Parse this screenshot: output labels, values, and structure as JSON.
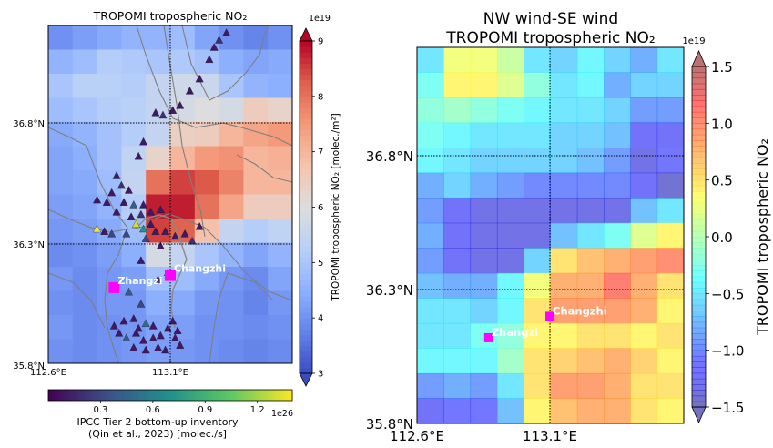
{
  "chart_data": [
    {
      "type": "heatmap",
      "title": "TROPOMI tropospheric NO₂",
      "xticks": [
        {
          "value": 112.6,
          "label": "112.6°E"
        },
        {
          "value": 113.1,
          "label": "113.1°E"
        }
      ],
      "yticks": [
        {
          "value": 35.8,
          "label": "35.8°N"
        },
        {
          "value": 36.3,
          "label": "36.3°N"
        },
        {
          "value": 36.8,
          "label": "36.8°N"
        }
      ],
      "xlim": [
        112.6,
        113.1
      ],
      "ylim": [
        35.8,
        36.8
      ],
      "grid_values": [
        [
          4.0,
          4.2,
          4.4,
          4.6,
          4.6,
          4.8,
          4.3,
          4.0,
          3.8,
          4.0
        ],
        [
          4.6,
          4.8,
          5.2,
          5.1,
          5.0,
          5.1,
          4.9,
          4.5,
          4.3,
          4.4
        ],
        [
          5.0,
          5.3,
          5.3,
          5.2,
          5.5,
          5.7,
          5.6,
          5.0,
          4.6,
          4.5
        ],
        [
          4.8,
          5.0,
          5.2,
          5.3,
          5.5,
          5.8,
          6.0,
          5.8,
          6.5,
          6.3
        ],
        [
          4.4,
          4.6,
          4.9,
          5.2,
          5.5,
          6.4,
          6.5,
          7.0,
          7.3,
          7.5
        ],
        [
          4.3,
          4.5,
          4.9,
          5.4,
          6.3,
          7.0,
          7.5,
          7.6,
          7.0,
          7.1
        ],
        [
          4.3,
          4.4,
          4.8,
          5.5,
          8.0,
          8.5,
          8.3,
          7.8,
          7.0,
          7.0
        ],
        [
          4.2,
          4.3,
          4.6,
          5.2,
          8.8,
          8.8,
          8.0,
          7.3,
          6.5,
          6.5
        ],
        [
          4.1,
          4.2,
          4.4,
          4.8,
          8.5,
          8.2,
          6.8,
          5.5,
          5.2,
          5.4
        ],
        [
          3.9,
          4.0,
          4.2,
          4.5,
          5.8,
          5.5,
          5.0,
          4.6,
          4.3,
          4.6
        ],
        [
          4.1,
          3.9,
          4.1,
          4.2,
          4.9,
          4.8,
          4.4,
          4.1,
          3.9,
          4.3
        ],
        [
          4.0,
          3.9,
          4.1,
          4.1,
          4.5,
          4.4,
          4.1,
          4.0,
          3.8,
          4.1
        ],
        [
          4.1,
          3.9,
          4.0,
          4.1,
          4.3,
          4.2,
          4.0,
          4.0,
          3.9,
          4.0
        ],
        [
          4.0,
          3.9,
          4.0,
          4.1,
          4.2,
          4.1,
          4.0,
          3.9,
          3.8,
          3.9
        ]
      ],
      "colorbar": {
        "label": "TROPOMI tropospheric NO₂ [molec./m²]",
        "multiplier": "1e19",
        "range": [
          3,
          9
        ],
        "ticks": [
          3,
          4,
          5,
          6,
          7,
          8,
          9
        ],
        "colormap": "coolwarm"
      },
      "bottom_colorbar": {
        "label_line1": "IPCC Tier 2 bottom-up inventory",
        "label_line2": "(Qin et al., 2023) [molec./s]",
        "multiplier": "1e26",
        "range": [
          0,
          1.4
        ],
        "ticks": [
          0.3,
          0.6,
          0.9,
          1.2
        ],
        "colormap": "viridis"
      },
      "cities": [
        {
          "name": "Changzhi",
          "lon": 113.1,
          "lat": 36.17
        },
        {
          "name": "Zhangzi",
          "lon": 112.87,
          "lat": 36.12
        }
      ],
      "sources": [
        [
          113.04,
          36.84,
          0.1
        ],
        [
          113.07,
          36.83,
          0.2
        ],
        [
          113.11,
          36.85,
          0.1
        ],
        [
          113.14,
          36.87,
          0.1
        ],
        [
          113.18,
          36.93,
          0.1
        ],
        [
          113.22,
          36.98,
          0.1
        ],
        [
          113.26,
          37.06,
          0.1
        ],
        [
          113.28,
          37.11,
          0.1
        ],
        [
          113.3,
          37.14,
          0.2
        ],
        [
          113.33,
          37.17,
          0.1
        ],
        [
          112.99,
          36.72,
          0.1
        ],
        [
          112.97,
          36.66,
          0.1
        ],
        [
          112.88,
          36.58,
          0.1
        ],
        [
          112.9,
          36.54,
          0.2
        ],
        [
          112.93,
          36.52,
          0.1
        ],
        [
          112.86,
          36.51,
          0.1
        ],
        [
          112.8,
          36.48,
          0.1
        ],
        [
          112.84,
          36.47,
          0.1
        ],
        [
          112.91,
          36.47,
          0.1
        ],
        [
          112.95,
          36.46,
          0.4
        ],
        [
          112.99,
          36.46,
          0.1
        ],
        [
          112.88,
          36.43,
          0.1
        ],
        [
          112.94,
          36.41,
          0.1
        ],
        [
          112.98,
          36.42,
          0.2
        ],
        [
          113.02,
          36.43,
          0.1
        ],
        [
          113.06,
          36.44,
          0.1
        ],
        [
          112.96,
          36.38,
          1.3
        ],
        [
          112.99,
          36.36,
          0.7
        ],
        [
          113.02,
          36.38,
          0.1
        ],
        [
          112.92,
          36.34,
          0.3
        ],
        [
          112.86,
          36.34,
          0.3
        ],
        [
          112.8,
          36.36,
          1.4
        ],
        [
          112.83,
          36.35,
          0.1
        ],
        [
          113.04,
          36.35,
          0.1
        ],
        [
          113.08,
          36.35,
          0.1
        ],
        [
          113.12,
          36.33,
          0.1
        ],
        [
          113.16,
          36.34,
          0.1
        ],
        [
          113.06,
          36.29,
          0.1
        ],
        [
          113.0,
          36.32,
          0.3
        ],
        [
          113.19,
          36.31,
          0.2
        ],
        [
          113.22,
          36.37,
          0.1
        ],
        [
          112.98,
          36.23,
          0.1
        ],
        [
          113.09,
          36.18,
          0.3
        ],
        [
          113.05,
          36.15,
          0.1
        ],
        [
          112.93,
          36.1,
          0.4
        ],
        [
          112.98,
          36.05,
          0.3
        ],
        [
          112.91,
          35.98,
          0.1
        ],
        [
          112.95,
          35.99,
          0.1
        ],
        [
          113.0,
          35.97,
          0.5
        ],
        [
          113.03,
          35.96,
          0.1
        ],
        [
          112.87,
          35.96,
          0.1
        ],
        [
          112.89,
          35.93,
          0.1
        ],
        [
          112.92,
          35.91,
          0.4
        ],
        [
          112.96,
          35.93,
          0.1
        ],
        [
          112.99,
          35.9,
          0.1
        ],
        [
          113.03,
          35.91,
          0.1
        ],
        [
          113.06,
          35.92,
          0.1
        ],
        [
          113.09,
          35.95,
          0.1
        ],
        [
          113.12,
          35.91,
          0.1
        ],
        [
          113.14,
          35.88,
          0.1
        ],
        [
          112.95,
          35.87,
          0.1
        ],
        [
          113.0,
          35.86,
          0.1
        ],
        [
          113.05,
          35.87,
          0.1
        ],
        [
          113.08,
          35.86,
          0.1
        ],
        [
          113.11,
          35.98,
          0.1
        ],
        [
          113.13,
          35.94,
          0.1
        ],
        [
          112.97,
          35.95,
          0.1
        ]
      ]
    },
    {
      "type": "heatmap",
      "title_line1": "NW wind-SE wind",
      "title_line2": "TROPOMI tropospheric NO₂",
      "xticks": [
        {
          "value": 112.6,
          "label": "112.6°E"
        },
        {
          "value": 113.1,
          "label": "113.1°E"
        }
      ],
      "yticks": [
        {
          "value": 35.8,
          "label": "35.8°N"
        },
        {
          "value": 36.3,
          "label": "36.3°N"
        },
        {
          "value": 36.8,
          "label": "36.8°N"
        }
      ],
      "xlim": [
        112.6,
        113.1
      ],
      "ylim": [
        35.8,
        36.8
      ],
      "grid_values": [
        [
          -0.5,
          0.3,
          0.3,
          0.1,
          -0.5,
          -0.6,
          -0.4,
          -0.6,
          -0.8,
          -0.5
        ],
        [
          -0.3,
          0.4,
          0.4,
          0.2,
          -0.2,
          -0.5,
          -0.4,
          -0.8,
          -0.6,
          -0.6
        ],
        [
          -0.2,
          -0.1,
          -0.2,
          -0.3,
          -0.4,
          -0.5,
          -0.5,
          -0.6,
          -0.9,
          -0.9
        ],
        [
          -0.3,
          -0.4,
          -0.5,
          -0.5,
          -0.5,
          -0.6,
          -0.6,
          -0.7,
          -1.2,
          -1.2
        ],
        [
          -0.4,
          -0.5,
          -0.6,
          -0.6,
          -0.6,
          -0.6,
          -0.7,
          -0.9,
          -1.3,
          -1.1
        ],
        [
          -0.8,
          -0.6,
          -0.8,
          -0.9,
          -1.0,
          -1.0,
          -1.0,
          -1.0,
          -1.2,
          -1.4
        ],
        [
          -0.9,
          -1.2,
          -1.3,
          -1.3,
          -1.3,
          -1.3,
          -1.3,
          -1.3,
          -0.7,
          -0.5
        ],
        [
          -0.8,
          -1.2,
          -1.3,
          -1.3,
          -1.3,
          -0.7,
          -0.5,
          -0.3,
          0.2,
          0.4
        ],
        [
          -0.9,
          -1.2,
          -1.3,
          -1.3,
          -0.6,
          0.5,
          0.7,
          0.8,
          0.9,
          1.0
        ],
        [
          -0.7,
          -0.8,
          -0.8,
          -0.4,
          0.3,
          0.8,
          0.8,
          1.1,
          0.8,
          0.5
        ],
        [
          -0.5,
          -0.5,
          -0.6,
          -0.4,
          0.5,
          0.9,
          0.9,
          0.9,
          0.8,
          0.4
        ],
        [
          -0.5,
          -0.5,
          -0.3,
          -0.2,
          0.4,
          0.4,
          0.5,
          0.5,
          0.4,
          0.5
        ],
        [
          -0.4,
          -0.4,
          -0.4,
          -0.1,
          0.5,
          0.6,
          0.7,
          0.8,
          0.6,
          0.4
        ],
        [
          -0.9,
          -0.8,
          -0.9,
          -0.5,
          0.5,
          0.9,
          0.9,
          0.8,
          0.5,
          0.5
        ],
        [
          -1.2,
          -1.1,
          -1.1,
          -0.7,
          0.4,
          0.7,
          0.8,
          0.8,
          0.5,
          0.4
        ]
      ],
      "colorbar": {
        "label": "TROPOMI tropospheric NO₂",
        "multiplier": "1e19",
        "range": [
          -1.5,
          1.5
        ],
        "ticks": [
          -1.5,
          -1.0,
          -0.5,
          0.0,
          0.5,
          1.0,
          1.5
        ],
        "colormap": "jet"
      },
      "cities": [
        {
          "name": "Changzhi",
          "lon": 113.1,
          "lat": 36.2
        },
        {
          "name": "Zhangzi",
          "lon": 112.87,
          "lat": 36.12
        }
      ]
    }
  ]
}
